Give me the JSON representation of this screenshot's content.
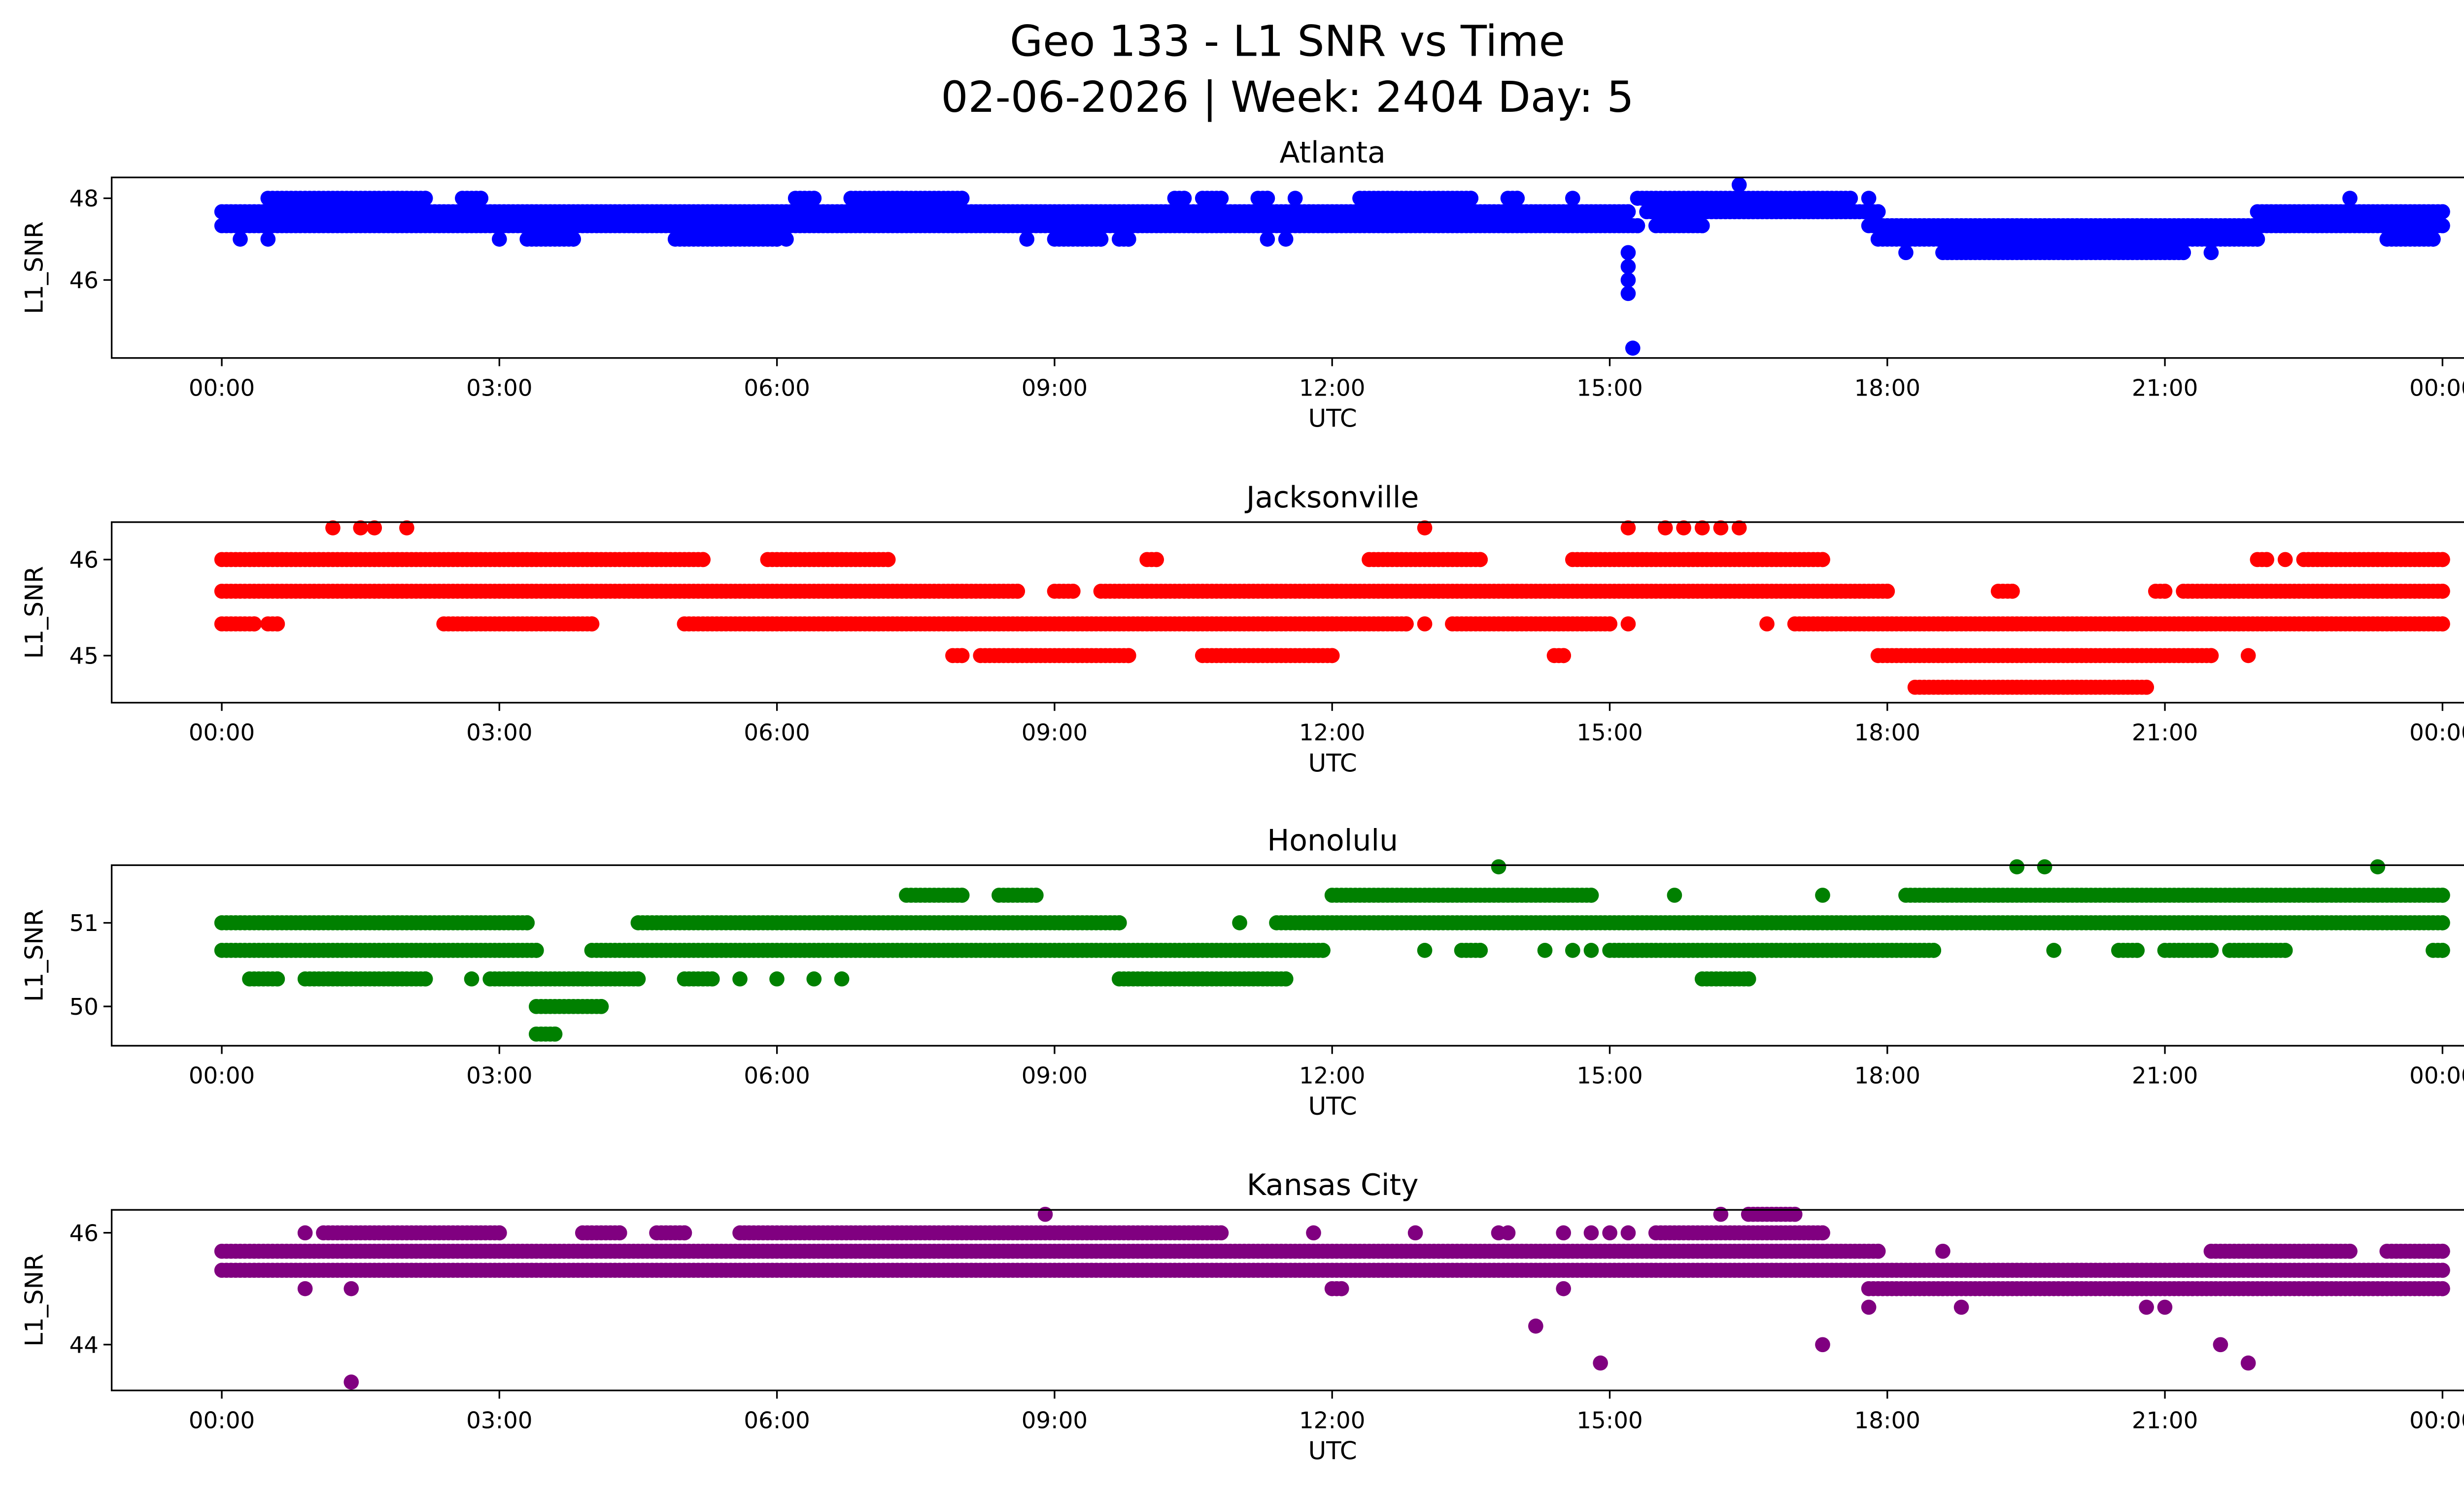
{
  "chart_data": {
    "type": "scatter",
    "title_line1": "Geo 133 - L1 SNR vs Time",
    "title_line2": "02-06-2026 | Week: 2404 Day: 5",
    "xlabel": "UTC",
    "ylabel": "L1_SNR",
    "x_unit": "hours UTC",
    "xlim": [
      -1.19,
      25.2
    ],
    "x_ticks": [
      0,
      3,
      6,
      9,
      12,
      15,
      18,
      21,
      24
    ],
    "x_tick_labels": [
      "00:00",
      "03:00",
      "06:00",
      "09:00",
      "12:00",
      "15:00",
      "18:00",
      "21:00",
      "00:00"
    ],
    "sample_interval_hours": 0.05,
    "panels": [
      {
        "title": "Atlanta",
        "color": "#0000ff",
        "ylim": [
          44.09,
          48.51
        ],
        "y_ticks": [
          46,
          48
        ],
        "runs": [
          [
            0,
            15.2,
            47.67
          ],
          [
            15.4,
            17.9,
            47.67
          ],
          [
            22.0,
            24,
            47.67
          ],
          [
            0,
            15.3,
            47.33
          ],
          [
            15.5,
            16.0,
            47.33
          ],
          [
            17.8,
            22.3,
            47.33
          ],
          [
            22.3,
            24,
            47.33
          ],
          [
            0.5,
            2.2,
            48
          ],
          [
            2.6,
            2.8,
            48
          ],
          [
            6.2,
            6.4,
            48
          ],
          [
            6.8,
            8.0,
            48
          ],
          [
            10.3,
            10.4,
            48
          ],
          [
            10.6,
            10.8,
            48
          ],
          [
            11.2,
            11.3,
            48
          ],
          [
            11.6,
            11.6,
            48
          ],
          [
            12.3,
            13.5,
            48
          ],
          [
            13.9,
            14.0,
            48
          ],
          [
            14.6,
            14.6,
            48
          ],
          [
            15.3,
            17.6,
            48
          ],
          [
            17.8,
            17.8,
            48
          ],
          [
            23.0,
            23.0,
            48
          ],
          [
            0.2,
            0.2,
            47
          ],
          [
            0.5,
            0.5,
            47
          ],
          [
            3.0,
            3.0,
            47
          ],
          [
            3.3,
            3.8,
            47
          ],
          [
            4.9,
            6.0,
            47
          ],
          [
            6.1,
            6.1,
            47
          ],
          [
            8.7,
            8.7,
            47
          ],
          [
            9.0,
            9.5,
            47
          ],
          [
            9.7,
            9.8,
            47
          ],
          [
            11.3,
            11.3,
            47
          ],
          [
            11.5,
            11.5,
            47
          ],
          [
            17.9,
            22.0,
            47
          ],
          [
            23.4,
            23.9,
            47
          ],
          [
            18.2,
            18.2,
            46.67
          ],
          [
            18.6,
            21.2,
            46.67
          ],
          [
            21.5,
            21.5,
            46.67
          ]
        ],
        "points": [
          [
            16.4,
            48.33
          ],
          [
            15.2,
            46.67
          ],
          [
            15.2,
            46.33
          ],
          [
            15.2,
            46.0
          ],
          [
            15.2,
            45.67
          ],
          [
            15.25,
            44.33
          ]
        ]
      },
      {
        "title": "Jacksonville",
        "color": "#ff0000",
        "ylim": [
          44.51,
          46.39
        ],
        "y_ticks": [
          45,
          46
        ],
        "runs": [
          [
            0,
            5.2,
            46
          ],
          [
            5.9,
            7.2,
            46
          ],
          [
            10.0,
            10.1,
            46
          ],
          [
            12.4,
            13.6,
            46
          ],
          [
            14.6,
            17.3,
            46
          ],
          [
            22.0,
            22.1,
            46
          ],
          [
            22.3,
            22.3,
            46
          ],
          [
            22.5,
            24,
            46
          ],
          [
            0,
            8.6,
            45.67
          ],
          [
            9.0,
            9.2,
            45.67
          ],
          [
            9.5,
            18.0,
            45.67
          ],
          [
            19.2,
            19.35,
            45.67
          ],
          [
            20.9,
            21.0,
            45.67
          ],
          [
            21.2,
            24,
            45.67
          ],
          [
            0,
            0.35,
            45.33
          ],
          [
            0.5,
            0.6,
            45.33
          ],
          [
            2.4,
            4.0,
            45.33
          ],
          [
            5.0,
            12.8,
            45.33
          ],
          [
            13.0,
            13.0,
            45.33
          ],
          [
            13.3,
            15.0,
            45.33
          ],
          [
            15.2,
            15.2,
            45.33
          ],
          [
            16.7,
            16.7,
            45.33
          ],
          [
            17.0,
            24,
            45.33
          ],
          [
            7.9,
            8.0,
            45
          ],
          [
            8.2,
            9.8,
            45
          ],
          [
            10.6,
            12.0,
            45
          ],
          [
            14.4,
            14.5,
            45
          ],
          [
            17.9,
            21.5,
            45
          ],
          [
            21.9,
            21.9,
            45
          ],
          [
            18.3,
            20.8,
            44.67
          ]
        ],
        "points": [
          [
            1.2,
            46.33
          ],
          [
            1.5,
            46.33
          ],
          [
            1.65,
            46.33
          ],
          [
            2.0,
            46.33
          ],
          [
            13.0,
            46.33
          ],
          [
            15.2,
            46.33
          ],
          [
            15.6,
            46.33
          ],
          [
            15.8,
            46.33
          ],
          [
            16.0,
            46.33
          ],
          [
            16.2,
            46.33
          ],
          [
            16.4,
            46.33
          ]
        ]
      },
      {
        "title": "Honolulu",
        "color": "#008000",
        "ylim": [
          49.53,
          51.69
        ],
        "y_ticks": [
          50,
          51
        ],
        "runs": [
          [
            7.4,
            8.0,
            51.33
          ],
          [
            8.4,
            8.8,
            51.33
          ],
          [
            12.0,
            14.8,
            51.33
          ],
          [
            18.2,
            24,
            51.33
          ],
          [
            0,
            3.3,
            51
          ],
          [
            4.5,
            9.7,
            51
          ],
          [
            11.0,
            11.0,
            51
          ],
          [
            11.4,
            24,
            51
          ],
          [
            0,
            3.4,
            50.67
          ],
          [
            4.0,
            11.9,
            50.67
          ],
          [
            13.0,
            13.0,
            50.67
          ],
          [
            13.4,
            13.6,
            50.67
          ],
          [
            14.3,
            14.3,
            50.67
          ],
          [
            14.6,
            14.6,
            50.67
          ],
          [
            14.8,
            14.8,
            50.67
          ],
          [
            15.0,
            18.5,
            50.67
          ],
          [
            19.8,
            19.8,
            50.67
          ],
          [
            20.5,
            20.7,
            50.67
          ],
          [
            21.0,
            21.5,
            50.67
          ],
          [
            21.7,
            22.3,
            50.67
          ],
          [
            23.9,
            24,
            50.67
          ],
          [
            0.3,
            0.6,
            50.33
          ],
          [
            0.9,
            2.2,
            50.33
          ],
          [
            2.7,
            2.7,
            50.33
          ],
          [
            2.9,
            4.5,
            50.33
          ],
          [
            5.0,
            5.3,
            50.33
          ],
          [
            5.6,
            5.6,
            50.33
          ],
          [
            6.0,
            6.0,
            50.33
          ],
          [
            6.4,
            6.4,
            50.33
          ],
          [
            6.7,
            6.7,
            50.33
          ],
          [
            9.7,
            11.5,
            50.33
          ],
          [
            16.0,
            16.5,
            50.33
          ],
          [
            3.4,
            4.1,
            50
          ],
          [
            3.4,
            3.6,
            49.67
          ]
        ],
        "points": [
          [
            13.8,
            51.67
          ],
          [
            19.4,
            51.67
          ],
          [
            19.7,
            51.67
          ],
          [
            23.3,
            51.67
          ],
          [
            15.7,
            51.33
          ],
          [
            17.3,
            51.33
          ]
        ]
      },
      {
        "title": "Kansas City",
        "color": "#800080",
        "ylim": [
          43.18,
          46.41
        ],
        "y_ticks": [
          44,
          46
        ],
        "runs": [
          [
            16.5,
            17.0,
            46.33
          ],
          [
            1.1,
            3.0,
            46
          ],
          [
            3.9,
            4.3,
            46
          ],
          [
            4.7,
            5.0,
            46
          ],
          [
            5.6,
            10.8,
            46
          ],
          [
            15.5,
            17.3,
            46
          ],
          [
            0,
            17.9,
            45.67
          ],
          [
            21.5,
            23.0,
            45.67
          ],
          [
            23.4,
            24,
            45.67
          ],
          [
            0,
            24,
            45.33
          ],
          [
            12.0,
            12.1,
            45
          ],
          [
            17.8,
            24,
            45
          ]
        ],
        "points": [
          [
            8.9,
            46.33
          ],
          [
            16.2,
            46.33
          ],
          [
            0.9,
            46
          ],
          [
            11.8,
            46
          ],
          [
            12.9,
            46
          ],
          [
            13.8,
            46
          ],
          [
            13.9,
            46
          ],
          [
            14.5,
            46
          ],
          [
            14.8,
            46
          ],
          [
            15.0,
            46
          ],
          [
            15.2,
            46
          ],
          [
            18.6,
            45.67
          ],
          [
            0.9,
            45
          ],
          [
            1.4,
            45
          ],
          [
            14.5,
            45
          ],
          [
            17.8,
            44.67
          ],
          [
            18.8,
            44.67
          ],
          [
            20.8,
            44.67
          ],
          [
            21.0,
            44.67
          ],
          [
            14.2,
            44.33
          ],
          [
            17.3,
            44
          ],
          [
            21.6,
            44
          ],
          [
            14.9,
            43.67
          ],
          [
            21.9,
            43.67
          ],
          [
            1.4,
            43.33
          ]
        ]
      }
    ]
  }
}
